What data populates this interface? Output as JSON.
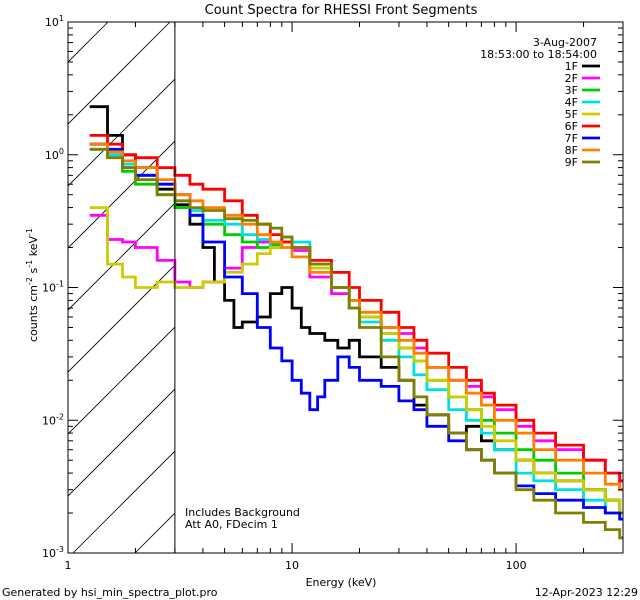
{
  "chart_data": {
    "type": "line",
    "title": "Count Spectra for RHESSI Front Segments",
    "xlabel": "Energy (keV)",
    "ylabel_parts": [
      "counts cm",
      "-2",
      " s",
      "-1",
      " keV",
      "-1"
    ],
    "x_scale": "log",
    "y_scale": "log",
    "xlim": [
      1,
      300
    ],
    "ylim": [
      0.001,
      10
    ],
    "x_ticks": [
      {
        "value": 1,
        "label": "1"
      },
      {
        "value": 10,
        "label": "10"
      },
      {
        "value": 100,
        "label": "100"
      }
    ],
    "y_ticks": [
      {
        "value": 0.001,
        "label": "10",
        "sup": "-3"
      },
      {
        "value": 0.01,
        "label": "10",
        "sup": "-2"
      },
      {
        "value": 0.1,
        "label": "10",
        "sup": "-1"
      },
      {
        "value": 1,
        "label": "10",
        "sup": "0"
      },
      {
        "value": 10,
        "label": "10",
        "sup": "1"
      }
    ],
    "excluded_below_keV": 3,
    "annotations": {
      "date": "3-Aug-2007",
      "time_range": "18:53:00 to 18:54:00",
      "background": "Includes Background",
      "attenuator": "Att A0, FDecim 1"
    },
    "series": [
      {
        "name": "1F",
        "color": "#000000",
        "points": [
          [
            1.25,
            2.3
          ],
          [
            1.5,
            1.4
          ],
          [
            1.75,
            1.0
          ],
          [
            2.0,
            0.8
          ],
          [
            2.5,
            0.55
          ],
          [
            3.0,
            0.42
          ],
          [
            3.5,
            0.3
          ],
          [
            4.0,
            0.2
          ],
          [
            4.5,
            0.11
          ],
          [
            5.0,
            0.08
          ],
          [
            5.5,
            0.05
          ],
          [
            6.0,
            0.055
          ],
          [
            7.0,
            0.06
          ],
          [
            8.0,
            0.09
          ],
          [
            9.0,
            0.1
          ],
          [
            10.0,
            0.07
          ],
          [
            11.0,
            0.05
          ],
          [
            12.0,
            0.045
          ],
          [
            14.0,
            0.04
          ],
          [
            16.0,
            0.035
          ],
          [
            18.0,
            0.04
          ],
          [
            20.0,
            0.03
          ],
          [
            25.0,
            0.025
          ],
          [
            30.0,
            0.02
          ],
          [
            35.0,
            0.013
          ],
          [
            40.0,
            0.011
          ],
          [
            50.0,
            0.008
          ],
          [
            60.0,
            0.009
          ],
          [
            70.0,
            0.007
          ],
          [
            80.0,
            0.006
          ],
          [
            100.0,
            0.005
          ],
          [
            120.0,
            0.004
          ],
          [
            150.0,
            0.0035
          ],
          [
            200.0,
            0.003
          ],
          [
            250.0,
            0.0025
          ],
          [
            290.0,
            0.002
          ]
        ]
      },
      {
        "name": "2F",
        "color": "#ff00ff",
        "points": [
          [
            1.25,
            0.35
          ],
          [
            1.5,
            0.23
          ],
          [
            1.75,
            0.22
          ],
          [
            2.0,
            0.2
          ],
          [
            2.5,
            0.16
          ],
          [
            3.0,
            0.11
          ],
          [
            3.5,
            0.1
          ],
          [
            4.0,
            0.11
          ],
          [
            5.0,
            0.14
          ],
          [
            6.0,
            0.2
          ],
          [
            7.0,
            0.22
          ],
          [
            8.0,
            0.2
          ],
          [
            9.0,
            0.24
          ],
          [
            10.0,
            0.19
          ],
          [
            12.0,
            0.12
          ],
          [
            15.0,
            0.09
          ],
          [
            18.0,
            0.07
          ],
          [
            20.0,
            0.06
          ],
          [
            25.0,
            0.05
          ],
          [
            30.0,
            0.045
          ],
          [
            35.0,
            0.035
          ],
          [
            40.0,
            0.025
          ],
          [
            50.0,
            0.02
          ],
          [
            60.0,
            0.018
          ],
          [
            70.0,
            0.015
          ],
          [
            80.0,
            0.012
          ],
          [
            100.0,
            0.009
          ],
          [
            120.0,
            0.007
          ],
          [
            150.0,
            0.006
          ],
          [
            200.0,
            0.005
          ],
          [
            250.0,
            0.004
          ],
          [
            290.0,
            0.003
          ]
        ]
      },
      {
        "name": "3F",
        "color": "#00cc00",
        "points": [
          [
            1.25,
            1.2
          ],
          [
            1.5,
            1.0
          ],
          [
            1.75,
            0.75
          ],
          [
            2.0,
            0.6
          ],
          [
            2.5,
            0.5
          ],
          [
            3.0,
            0.4
          ],
          [
            3.5,
            0.35
          ],
          [
            4.0,
            0.3
          ],
          [
            5.0,
            0.25
          ],
          [
            6.0,
            0.22
          ],
          [
            7.0,
            0.2
          ],
          [
            8.0,
            0.21
          ],
          [
            9.0,
            0.22
          ],
          [
            10.0,
            0.2
          ],
          [
            12.0,
            0.15
          ],
          [
            15.0,
            0.1
          ],
          [
            18.0,
            0.08
          ],
          [
            20.0,
            0.06
          ],
          [
            25.0,
            0.045
          ],
          [
            30.0,
            0.035
          ],
          [
            35.0,
            0.028
          ],
          [
            40.0,
            0.02
          ],
          [
            50.0,
            0.015
          ],
          [
            60.0,
            0.012
          ],
          [
            70.0,
            0.01
          ],
          [
            80.0,
            0.008
          ],
          [
            100.0,
            0.006
          ],
          [
            120.0,
            0.005
          ],
          [
            150.0,
            0.004
          ],
          [
            200.0,
            0.003
          ],
          [
            250.0,
            0.0025
          ],
          [
            290.0,
            0.002
          ]
        ]
      },
      {
        "name": "4F",
        "color": "#00e0e0",
        "points": [
          [
            1.25,
            1.1
          ],
          [
            1.5,
            1.0
          ],
          [
            1.75,
            0.85
          ],
          [
            2.0,
            0.7
          ],
          [
            2.5,
            0.6
          ],
          [
            3.0,
            0.45
          ],
          [
            3.5,
            0.38
          ],
          [
            4.0,
            0.32
          ],
          [
            5.0,
            0.3
          ],
          [
            6.0,
            0.25
          ],
          [
            7.0,
            0.23
          ],
          [
            8.0,
            0.2
          ],
          [
            9.0,
            0.24
          ],
          [
            10.0,
            0.22
          ],
          [
            12.0,
            0.14
          ],
          [
            15.0,
            0.1
          ],
          [
            18.0,
            0.07
          ],
          [
            20.0,
            0.055
          ],
          [
            25.0,
            0.04
          ],
          [
            30.0,
            0.03
          ],
          [
            35.0,
            0.022
          ],
          [
            40.0,
            0.017
          ],
          [
            50.0,
            0.012
          ],
          [
            60.0,
            0.01
          ],
          [
            70.0,
            0.008
          ],
          [
            80.0,
            0.006
          ],
          [
            100.0,
            0.004
          ],
          [
            120.0,
            0.0035
          ],
          [
            150.0,
            0.003
          ],
          [
            200.0,
            0.0025
          ],
          [
            250.0,
            0.002
          ],
          [
            290.0,
            0.0018
          ]
        ]
      },
      {
        "name": "5F",
        "color": "#cccc00",
        "points": [
          [
            1.25,
            0.4
          ],
          [
            1.5,
            0.15
          ],
          [
            1.75,
            0.12
          ],
          [
            2.0,
            0.1
          ],
          [
            2.5,
            0.11
          ],
          [
            3.0,
            0.1
          ],
          [
            3.5,
            0.1
          ],
          [
            4.0,
            0.11
          ],
          [
            5.0,
            0.13
          ],
          [
            6.0,
            0.15
          ],
          [
            7.0,
            0.18
          ],
          [
            8.0,
            0.2
          ],
          [
            9.0,
            0.22
          ],
          [
            10.0,
            0.2
          ],
          [
            12.0,
            0.14
          ],
          [
            15.0,
            0.1
          ],
          [
            18.0,
            0.08
          ],
          [
            20.0,
            0.06
          ],
          [
            25.0,
            0.045
          ],
          [
            30.0,
            0.035
          ],
          [
            35.0,
            0.028
          ],
          [
            40.0,
            0.02
          ],
          [
            50.0,
            0.015
          ],
          [
            60.0,
            0.012
          ],
          [
            70.0,
            0.009
          ],
          [
            80.0,
            0.007
          ],
          [
            100.0,
            0.005
          ],
          [
            120.0,
            0.004
          ],
          [
            150.0,
            0.0035
          ],
          [
            200.0,
            0.003
          ],
          [
            250.0,
            0.0025
          ],
          [
            290.0,
            0.002
          ]
        ]
      },
      {
        "name": "6F",
        "color": "#ff0000",
        "points": [
          [
            1.25,
            1.4
          ],
          [
            1.5,
            1.2
          ],
          [
            1.75,
            1.0
          ],
          [
            2.0,
            0.95
          ],
          [
            2.5,
            0.8
          ],
          [
            3.0,
            0.7
          ],
          [
            3.5,
            0.6
          ],
          [
            4.0,
            0.55
          ],
          [
            5.0,
            0.45
          ],
          [
            6.0,
            0.35
          ],
          [
            7.0,
            0.3
          ],
          [
            8.0,
            0.25
          ],
          [
            9.0,
            0.22
          ],
          [
            10.0,
            0.2
          ],
          [
            12.0,
            0.16
          ],
          [
            15.0,
            0.13
          ],
          [
            18.0,
            0.1
          ],
          [
            20.0,
            0.08
          ],
          [
            25.0,
            0.065
          ],
          [
            30.0,
            0.05
          ],
          [
            35.0,
            0.04
          ],
          [
            40.0,
            0.032
          ],
          [
            50.0,
            0.025
          ],
          [
            60.0,
            0.02
          ],
          [
            70.0,
            0.016
          ],
          [
            80.0,
            0.013
          ],
          [
            100.0,
            0.01
          ],
          [
            120.0,
            0.008
          ],
          [
            150.0,
            0.0065
          ],
          [
            200.0,
            0.005
          ],
          [
            250.0,
            0.004
          ],
          [
            290.0,
            0.0035
          ]
        ]
      },
      {
        "name": "7F",
        "color": "#0000ff",
        "points": [
          [
            1.25,
            1.2
          ],
          [
            1.5,
            1.1
          ],
          [
            1.75,
            0.8
          ],
          [
            2.0,
            0.7
          ],
          [
            2.5,
            0.6
          ],
          [
            3.0,
            0.5
          ],
          [
            3.5,
            0.35
          ],
          [
            4.0,
            0.22
          ],
          [
            5.0,
            0.12
          ],
          [
            6.0,
            0.09
          ],
          [
            7.0,
            0.05
          ],
          [
            8.0,
            0.035
          ],
          [
            9.0,
            0.028
          ],
          [
            10.0,
            0.02
          ],
          [
            11.0,
            0.016
          ],
          [
            12.0,
            0.012
          ],
          [
            13.0,
            0.015
          ],
          [
            14.0,
            0.02
          ],
          [
            16.0,
            0.03
          ],
          [
            18.0,
            0.025
          ],
          [
            20.0,
            0.02
          ],
          [
            25.0,
            0.018
          ],
          [
            30.0,
            0.014
          ],
          [
            35.0,
            0.012
          ],
          [
            40.0,
            0.009
          ],
          [
            50.0,
            0.007
          ],
          [
            60.0,
            0.006
          ],
          [
            70.0,
            0.005
          ],
          [
            80.0,
            0.004
          ],
          [
            100.0,
            0.0032
          ],
          [
            120.0,
            0.0028
          ],
          [
            150.0,
            0.0025
          ],
          [
            200.0,
            0.0022
          ],
          [
            250.0,
            0.002
          ],
          [
            290.0,
            0.0018
          ]
        ]
      },
      {
        "name": "8F",
        "color": "#ff8000",
        "points": [
          [
            1.25,
            1.2
          ],
          [
            1.5,
            1.05
          ],
          [
            1.75,
            0.9
          ],
          [
            2.0,
            0.8
          ],
          [
            2.5,
            0.65
          ],
          [
            3.0,
            0.5
          ],
          [
            3.5,
            0.45
          ],
          [
            4.0,
            0.4
          ],
          [
            5.0,
            0.35
          ],
          [
            6.0,
            0.3
          ],
          [
            7.0,
            0.25
          ],
          [
            8.0,
            0.22
          ],
          [
            9.0,
            0.2
          ],
          [
            10.0,
            0.17
          ],
          [
            12.0,
            0.13
          ],
          [
            15.0,
            0.1
          ],
          [
            18.0,
            0.08
          ],
          [
            20.0,
            0.065
          ],
          [
            25.0,
            0.05
          ],
          [
            30.0,
            0.04
          ],
          [
            35.0,
            0.032
          ],
          [
            40.0,
            0.025
          ],
          [
            50.0,
            0.02
          ],
          [
            60.0,
            0.016
          ],
          [
            70.0,
            0.013
          ],
          [
            80.0,
            0.01
          ],
          [
            100.0,
            0.008
          ],
          [
            120.0,
            0.006
          ],
          [
            150.0,
            0.005
          ],
          [
            200.0,
            0.004
          ],
          [
            250.0,
            0.0033
          ],
          [
            290.0,
            0.003
          ]
        ]
      },
      {
        "name": "9F",
        "color": "#808000",
        "points": [
          [
            1.25,
            1.1
          ],
          [
            1.5,
            0.95
          ],
          [
            1.75,
            0.8
          ],
          [
            2.0,
            0.65
          ],
          [
            2.5,
            0.5
          ],
          [
            3.0,
            0.45
          ],
          [
            3.5,
            0.4
          ],
          [
            4.0,
            0.38
          ],
          [
            5.0,
            0.33
          ],
          [
            6.0,
            0.32
          ],
          [
            7.0,
            0.3
          ],
          [
            8.0,
            0.28
          ],
          [
            9.0,
            0.24
          ],
          [
            10.0,
            0.2
          ],
          [
            12.0,
            0.15
          ],
          [
            15.0,
            0.1
          ],
          [
            18.0,
            0.07
          ],
          [
            20.0,
            0.05
          ],
          [
            25.0,
            0.03
          ],
          [
            30.0,
            0.02
          ],
          [
            35.0,
            0.015
          ],
          [
            40.0,
            0.011
          ],
          [
            50.0,
            0.008
          ],
          [
            60.0,
            0.006
          ],
          [
            70.0,
            0.005
          ],
          [
            80.0,
            0.004
          ],
          [
            100.0,
            0.003
          ],
          [
            120.0,
            0.0025
          ],
          [
            150.0,
            0.002
          ],
          [
            200.0,
            0.0017
          ],
          [
            250.0,
            0.0015
          ],
          [
            290.0,
            0.0013
          ]
        ]
      }
    ]
  },
  "footer": {
    "generated_by": "Generated by hsi_min_spectra_plot.pro",
    "timestamp": "12-Apr-2023 12:29"
  }
}
